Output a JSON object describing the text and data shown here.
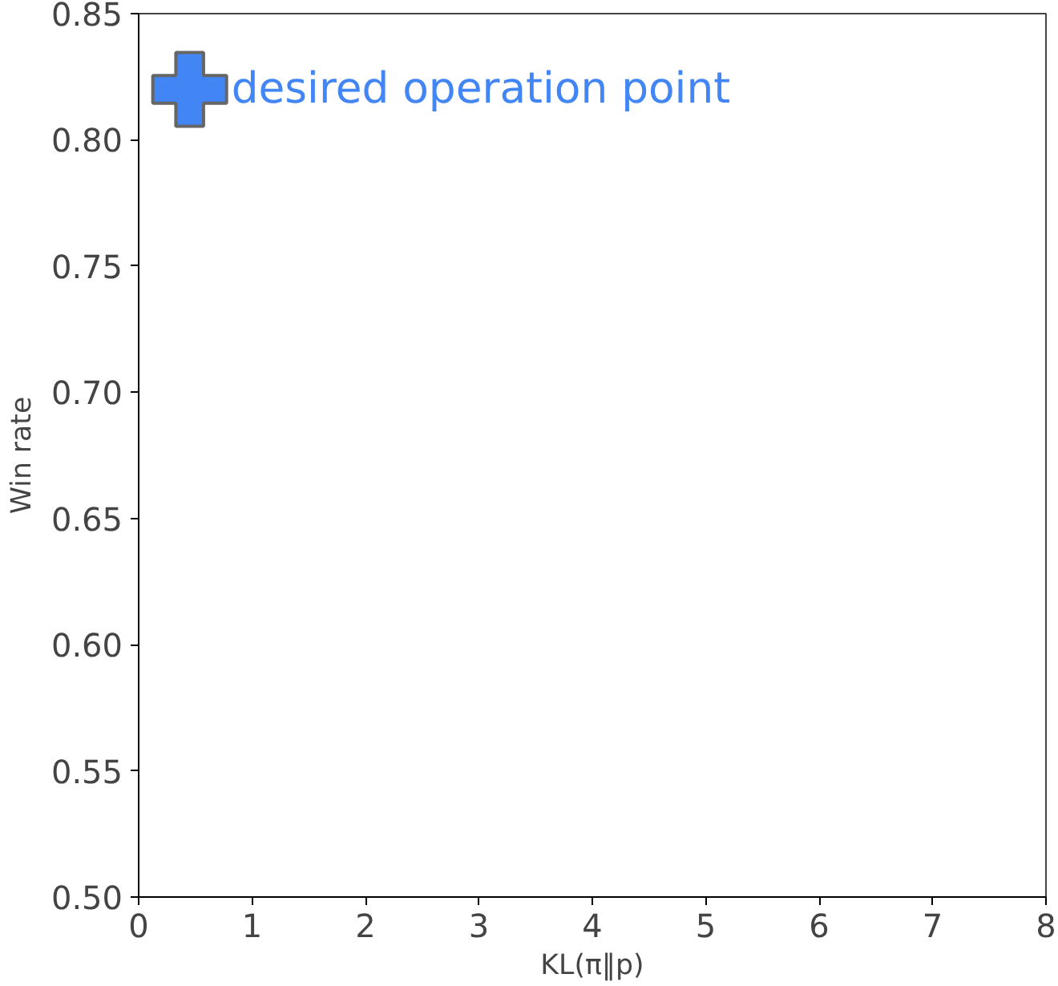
{
  "chart_data": {
    "type": "scatter",
    "xlabel": "KL(π‖p)",
    "ylabel": "Win rate",
    "xlim": [
      0,
      8
    ],
    "ylim": [
      0.5,
      0.85
    ],
    "xticks": [
      0,
      1,
      2,
      3,
      4,
      5,
      6,
      7,
      8
    ],
    "yticks": [
      {
        "value": 0.5,
        "label": "0.50"
      },
      {
        "value": 0.55,
        "label": "0.55"
      },
      {
        "value": 0.6,
        "label": "0.60"
      },
      {
        "value": 0.65,
        "label": "0.65"
      },
      {
        "value": 0.7,
        "label": "0.70"
      },
      {
        "value": 0.75,
        "label": "0.75"
      },
      {
        "value": 0.8,
        "label": "0.80"
      },
      {
        "value": 0.85,
        "label": "0.85"
      }
    ],
    "grid": false,
    "legend": false,
    "marker": "cross",
    "series": [
      {
        "name": "desired operation point",
        "color": "#4285f4",
        "x": [
          0.45
        ],
        "values": [
          0.82
        ]
      }
    ]
  }
}
